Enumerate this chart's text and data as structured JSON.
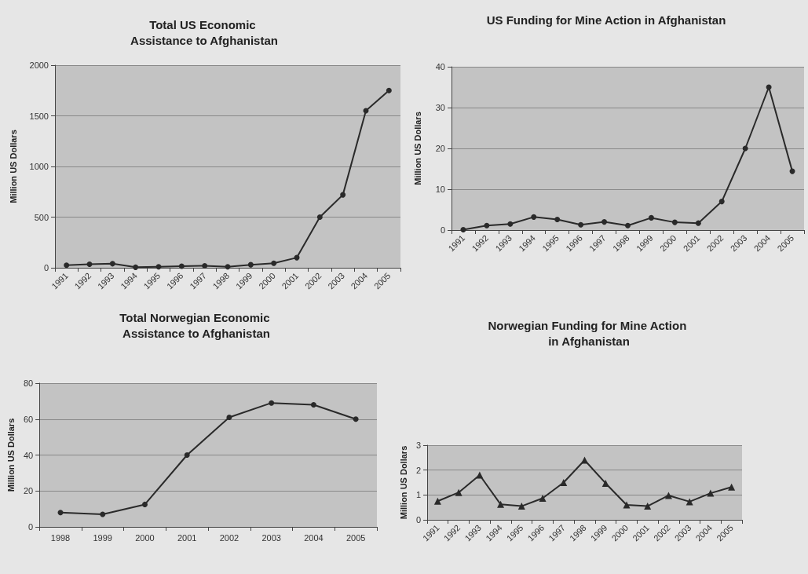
{
  "chart_data": [
    {
      "type": "line",
      "title": "Total US Economic Assistance to Afghanistan",
      "ylabel": "Million US Dollars",
      "categories": [
        "1991",
        "1992",
        "1993",
        "1994",
        "1995",
        "1996",
        "1997",
        "1998",
        "1999",
        "2000",
        "2001",
        "2002",
        "2003",
        "2004",
        "2005"
      ],
      "series": [
        {
          "color": "#2a2a2a",
          "values": [
            25,
            35,
            40,
            5,
            10,
            15,
            20,
            10,
            30,
            45,
            100,
            500,
            720,
            1550,
            1750
          ]
        }
      ],
      "ylim": [
        0,
        2000
      ],
      "yticks": [
        0,
        500,
        1000,
        1500,
        2000
      ],
      "grid": "y",
      "marker": "circle"
    },
    {
      "type": "line",
      "title": "US Funding for Mine Action in Afghanistan",
      "ylabel": "Million US Dollars",
      "categories": [
        "1991",
        "1992",
        "1993",
        "1994",
        "1995",
        "1996",
        "1997",
        "1998",
        "1999",
        "2000",
        "2001",
        "2002",
        "2003",
        "2004",
        "2005"
      ],
      "series": [
        {
          "color": "#2a2a2a",
          "values": [
            0.1,
            1.1,
            1.5,
            3.2,
            2.6,
            1.3,
            2.0,
            1.1,
            3.0,
            1.9,
            1.7,
            7,
            20,
            35,
            14.4
          ]
        }
      ],
      "ylim": [
        0,
        40
      ],
      "yticks": [
        0,
        10,
        20,
        30,
        40
      ],
      "grid": "y",
      "marker": "circle"
    },
    {
      "type": "line",
      "title": "Total Norwegian Economic Assistance to Afghanistan",
      "ylabel": "Million US Dollars",
      "categories": [
        "1998",
        "1999",
        "2000",
        "2001",
        "2002",
        "2003",
        "2004",
        "2005"
      ],
      "series": [
        {
          "color": "#2a2a2a",
          "values": [
            8,
            7,
            12.5,
            40,
            61,
            69,
            68,
            60
          ]
        }
      ],
      "ylim": [
        0,
        80
      ],
      "yticks": [
        0,
        20,
        40,
        60,
        80
      ],
      "grid": "y",
      "marker": "circle"
    },
    {
      "type": "line",
      "title": "Norwegian Funding for Mine Action in Afghanistan",
      "ylabel": "Million US Dollars",
      "categories": [
        "1991",
        "1992",
        "1993",
        "1994",
        "1995",
        "1996",
        "1997",
        "1998",
        "1999",
        "2000",
        "2001",
        "2002",
        "2003",
        "2004",
        "2005"
      ],
      "series": [
        {
          "color": "#2a2a2a",
          "values": [
            0.75,
            1.1,
            1.8,
            0.62,
            0.55,
            0.87,
            1.5,
            2.4,
            1.47,
            0.6,
            0.55,
            0.98,
            0.73,
            1.07,
            1.32
          ]
        }
      ],
      "ylim": [
        0,
        3
      ],
      "yticks": [
        0,
        1,
        2,
        3
      ],
      "grid": "y",
      "marker": "triangle"
    }
  ]
}
